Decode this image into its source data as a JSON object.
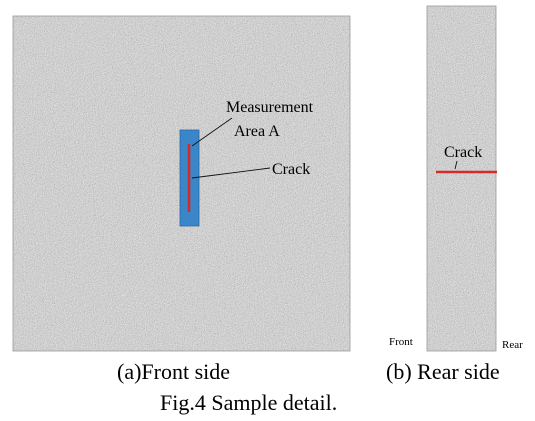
{
  "front_panel": {
    "annotations": {
      "measurement": "Measurement",
      "area": "Area A",
      "crack": "Crack"
    },
    "caption": "(a)Front side"
  },
  "rear_panel": {
    "crack_label": "Crack",
    "front_label": "Front",
    "rear_label": "Rear",
    "caption": "(b) Rear side"
  },
  "figure_caption": "Fig.4 Sample detail.",
  "colors": {
    "measurement_area": "#3a86c8",
    "crack_line": "#d42a2a",
    "concrete_base": "#c8c8c8"
  }
}
